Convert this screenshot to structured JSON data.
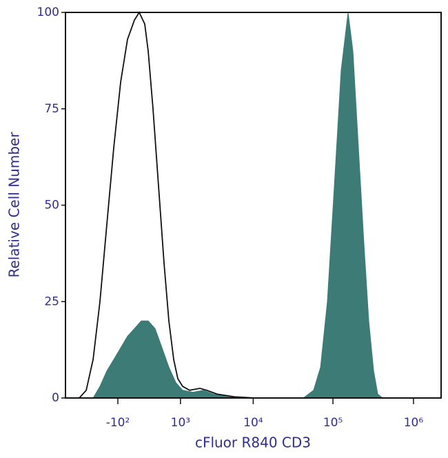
{
  "chart_data": {
    "type": "area",
    "xlabel": "cFluor R840 CD3",
    "ylabel": "Relative Cell Number",
    "xscale": "biexponential",
    "xlim": [
      -1450,
      2200000
    ],
    "ylim": [
      0,
      100
    ],
    "xticks": [
      {
        "value": -100,
        "label": "-10²"
      },
      {
        "value": 1000,
        "label": "10³"
      },
      {
        "value": 10000,
        "label": "10⁴"
      },
      {
        "value": 100000,
        "label": "10⁵"
      },
      {
        "value": 1000000,
        "label": "10⁶"
      }
    ],
    "yticks": [
      0,
      25,
      50,
      75,
      100
    ],
    "series": [
      {
        "color": "#3d7b77",
        "filled": true,
        "x": [
          -501,
          -360,
          -244,
          -148,
          -70,
          -6,
          56,
          131,
          223,
          334,
          471,
          635,
          838,
          1082,
          1554,
          2189,
          3039,
          4646,
          7018,
          42717,
          57420,
          70100,
          85260,
          104000,
          126600,
          154000,
          177000,
          207300,
          242600,
          278600,
          319900,
          360000,
          413300
        ],
        "values": [
          0,
          3,
          7,
          10,
          13,
          16,
          18,
          20,
          20,
          18,
          13,
          8,
          4,
          2,
          1.5,
          2,
          1,
          0.3,
          0,
          0,
          2,
          8,
          25,
          55,
          85,
          100,
          90,
          65,
          40,
          20,
          7,
          1,
          0
        ]
      },
      {
        "color": "#111111",
        "filled": false,
        "x": [
          -883,
          -673,
          -501,
          -360,
          -244,
          -148,
          -70,
          -6,
          56,
          107,
          175,
          223,
          299,
          399,
          516,
          635,
          772,
          905,
          1082,
          1383,
          1955,
          2442,
          3384,
          5713,
          10556
        ],
        "values": [
          0,
          2,
          10,
          25,
          45,
          65,
          82,
          93,
          98,
          100,
          97,
          90,
          75,
          55,
          35,
          20,
          10,
          5,
          3,
          2,
          2.5,
          2,
          1,
          0.3,
          0
        ]
      }
    ]
  }
}
